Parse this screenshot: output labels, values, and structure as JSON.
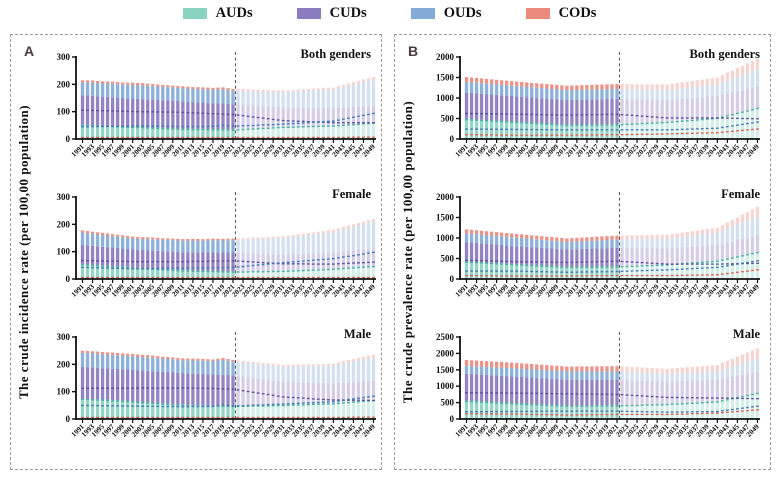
{
  "legend": {
    "items": [
      {
        "label": "AUDs",
        "color": "#8BD2C3",
        "line_color": "#3AAE9C"
      },
      {
        "label": "CUDs",
        "color": "#8A7CBE",
        "line_color": "#584A9E"
      },
      {
        "label": "OUDs",
        "color": "#84ABD7",
        "line_color": "#3E74B6"
      },
      {
        "label": "CODs",
        "color": "#EA8B7E",
        "line_color": "#E4574B"
      }
    ]
  },
  "panels": [
    {
      "letter": "A",
      "ylabel": "The crude incidence rate (per 100,00 population)"
    },
    {
      "letter": "B",
      "ylabel": "The crude prevalence rate (per 100,00 population)"
    }
  ],
  "x_axis": {
    "years_labeled": [
      1991,
      1993,
      1995,
      1997,
      1999,
      2001,
      2003,
      2005,
      2007,
      2009,
      2011,
      2013,
      2015,
      2017,
      2019,
      2021,
      2023,
      2025,
      2027,
      2029,
      2031,
      2033,
      2035,
      2037,
      2039,
      2041,
      2043,
      2045,
      2047,
      2049
    ],
    "range": [
      1991,
      2049
    ],
    "observed_through": 2021,
    "projection_from": 2022,
    "divider_after_year": 2021,
    "note": "bars drawn yearly; values listed at labeled (odd) years; years after 2021 are projections drawn lighter"
  },
  "chart_data": [
    {
      "type": "bar",
      "stacked": true,
      "panel": "A",
      "title": "Both genders",
      "ylabel": "The crude incidence rate (per 100,00 population)",
      "ylim": [
        0,
        300
      ],
      "yticks": [
        0,
        100,
        200,
        300
      ],
      "series": [
        {
          "name": "AUDs",
          "values": [
            52,
            51,
            49,
            48,
            46,
            45,
            44,
            42,
            41,
            39,
            38,
            37,
            37,
            36,
            36,
            35,
            37,
            39,
            41,
            43,
            45,
            46,
            47,
            48,
            49,
            50,
            53,
            55,
            58,
            60
          ]
        },
        {
          "name": "CUDs",
          "values": [
            108,
            107,
            106,
            105,
            104,
            103,
            102,
            102,
            101,
            101,
            100,
            98,
            97,
            95,
            94,
            92,
            88,
            83,
            79,
            74,
            70,
            68,
            67,
            65,
            64,
            62,
            62,
            62,
            62,
            62
          ]
        },
        {
          "name": "OUDs",
          "values": [
            47,
            48,
            48,
            49,
            49,
            50,
            50,
            49,
            49,
            48,
            48,
            48,
            48,
            49,
            52,
            49,
            51,
            52,
            54,
            55,
            57,
            59,
            61,
            64,
            66,
            68,
            75,
            82,
            89,
            96
          ]
        },
        {
          "name": "CODs",
          "values": [
            8,
            8,
            8,
            8,
            8,
            8,
            8,
            8,
            7,
            7,
            7,
            7,
            7,
            7,
            7,
            7,
            7,
            7,
            6,
            6,
            6,
            6,
            7,
            7,
            8,
            8,
            8,
            9,
            9,
            9
          ]
        }
      ]
    },
    {
      "type": "bar",
      "stacked": true,
      "panel": "A",
      "title": "Female",
      "ylabel": "The crude incidence rate (per 100,00 population)",
      "ylim": [
        0,
        300
      ],
      "yticks": [
        0,
        100,
        200,
        300
      ],
      "series": [
        {
          "name": "AUDs",
          "values": [
            55,
            52,
            50,
            47,
            45,
            42,
            40,
            38,
            36,
            34,
            32,
            31,
            30,
            30,
            29,
            28,
            28,
            29,
            29,
            30,
            30,
            32,
            33,
            35,
            36,
            38,
            41,
            43,
            46,
            48
          ]
        },
        {
          "name": "CUDs",
          "values": [
            70,
            69,
            68,
            68,
            67,
            66,
            66,
            66,
            66,
            66,
            66,
            67,
            67,
            68,
            68,
            69,
            67,
            65,
            62,
            60,
            58,
            58,
            58,
            57,
            57,
            57,
            59,
            61,
            62,
            64
          ]
        },
        {
          "name": "OUDs",
          "values": [
            45,
            44,
            43,
            42,
            41,
            40,
            40,
            41,
            41,
            42,
            42,
            43,
            43,
            44,
            44,
            45,
            48,
            52,
            55,
            59,
            62,
            65,
            68,
            71,
            74,
            77,
            83,
            88,
            94,
            100
          ]
        },
        {
          "name": "CODs",
          "values": [
            8,
            8,
            8,
            7,
            7,
            7,
            7,
            7,
            6,
            6,
            6,
            6,
            6,
            6,
            6,
            6,
            6,
            6,
            6,
            6,
            6,
            6,
            7,
            7,
            8,
            8,
            8,
            8,
            8,
            8
          ]
        }
      ]
    },
    {
      "type": "bar",
      "stacked": true,
      "panel": "A",
      "title": "Male",
      "ylabel": "The crude incidence rate (per 100,00 population)",
      "ylim": [
        0,
        300
      ],
      "yticks": [
        0,
        100,
        200,
        300
      ],
      "series": [
        {
          "name": "AUDs",
          "values": [
            75,
            73,
            71,
            69,
            67,
            65,
            62,
            60,
            57,
            55,
            52,
            51,
            50,
            49,
            49,
            48,
            49,
            50,
            50,
            51,
            52,
            53,
            54,
            56,
            57,
            58,
            61,
            64,
            67,
            70
          ]
        },
        {
          "name": "CUDs",
          "values": [
            115,
            115,
            115,
            115,
            115,
            115,
            116,
            115,
            116,
            115,
            116,
            115,
            115,
            114,
            113,
            112,
            106,
            100,
            95,
            89,
            83,
            81,
            79,
            76,
            74,
            72,
            72,
            71,
            71,
            70
          ]
        },
        {
          "name": "OUDs",
          "values": [
            52,
            52,
            51,
            51,
            50,
            50,
            49,
            49,
            48,
            48,
            47,
            48,
            48,
            49,
            54,
            50,
            51,
            53,
            54,
            56,
            57,
            59,
            61,
            62,
            64,
            66,
            71,
            76,
            81,
            86
          ]
        },
        {
          "name": "CODs",
          "values": [
            8,
            8,
            8,
            8,
            8,
            8,
            8,
            8,
            7,
            7,
            7,
            7,
            7,
            6,
            7,
            6,
            6,
            6,
            6,
            6,
            6,
            6,
            6,
            6,
            6,
            6,
            8,
            9,
            9,
            9
          ]
        }
      ]
    },
    {
      "type": "bar",
      "stacked": true,
      "panel": "B",
      "title": "Both genders",
      "ylabel": "The crude prevalence rate (per 100,00 population)",
      "ylim": [
        0,
        2000
      ],
      "yticks": [
        0,
        500,
        1000,
        1500,
        2000
      ],
      "series": [
        {
          "name": "AUDs",
          "values": [
            490,
            476,
            462,
            448,
            434,
            420,
            406,
            392,
            378,
            364,
            350,
            352,
            354,
            356,
            358,
            360,
            372,
            384,
            396,
            408,
            420,
            440,
            460,
            480,
            500,
            520,
            580,
            640,
            700,
            760
          ]
        },
        {
          "name": "CUDs",
          "values": [
            640,
            636,
            632,
            628,
            624,
            620,
            616,
            612,
            608,
            604,
            600,
            604,
            608,
            612,
            616,
            620,
            602,
            584,
            566,
            548,
            530,
            530,
            530,
            530,
            530,
            530,
            525,
            520,
            515,
            510
          ]
        },
        {
          "name": "OUDs",
          "values": [
            260,
            258,
            256,
            254,
            252,
            250,
            248,
            246,
            244,
            242,
            240,
            240,
            240,
            240,
            240,
            240,
            240,
            240,
            240,
            240,
            240,
            248,
            256,
            264,
            272,
            280,
            318,
            355,
            392,
            430
          ]
        },
        {
          "name": "CODs",
          "values": [
            120,
            118,
            116,
            114,
            112,
            110,
            110,
            110,
            110,
            110,
            110,
            112,
            114,
            116,
            118,
            120,
            124,
            128,
            132,
            136,
            140,
            146,
            152,
            158,
            164,
            170,
            192,
            215,
            238,
            260
          ]
        }
      ]
    },
    {
      "type": "bar",
      "stacked": true,
      "panel": "B",
      "title": "Female",
      "ylabel": "The crude prevalence rate (per 100,00 population)",
      "ylim": [
        0,
        2000
      ],
      "yticks": [
        0,
        500,
        1000,
        1500,
        2000
      ],
      "series": [
        {
          "name": "AUDs",
          "values": [
            430,
            416,
            402,
            388,
            374,
            360,
            348,
            336,
            324,
            312,
            300,
            302,
            304,
            306,
            308,
            310,
            320,
            330,
            340,
            350,
            360,
            378,
            396,
            414,
            432,
            450,
            503,
            555,
            608,
            660
          ]
        },
        {
          "name": "CUDs",
          "values": [
            470,
            464,
            458,
            452,
            446,
            440,
            436,
            432,
            428,
            424,
            420,
            426,
            432,
            438,
            444,
            450,
            436,
            422,
            408,
            394,
            380,
            380,
            380,
            380,
            380,
            380,
            385,
            390,
            395,
            400
          ]
        },
        {
          "name": "OUDs",
          "values": [
            210,
            210,
            210,
            210,
            210,
            210,
            204,
            198,
            192,
            186,
            180,
            184,
            188,
            192,
            196,
            200,
            208,
            216,
            224,
            232,
            240,
            252,
            264,
            276,
            288,
            300,
            340,
            380,
            420,
            460
          ]
        },
        {
          "name": "CODs",
          "values": [
            100,
            98,
            96,
            94,
            92,
            90,
            90,
            90,
            90,
            90,
            90,
            92,
            94,
            96,
            98,
            100,
            100,
            100,
            100,
            100,
            100,
            104,
            108,
            112,
            116,
            120,
            150,
            180,
            210,
            240
          ]
        }
      ]
    },
    {
      "type": "bar",
      "stacked": true,
      "panel": "B",
      "title": "Male",
      "ylabel": "The crude prevalence rate (per 100,00 population)",
      "ylim": [
        0,
        2500
      ],
      "yticks": [
        0,
        500,
        1000,
        1500,
        2000,
        2500
      ],
      "series": [
        {
          "name": "AUDs",
          "values": [
            560,
            544,
            528,
            512,
            496,
            480,
            466,
            452,
            438,
            424,
            410,
            412,
            414,
            416,
            418,
            420,
            428,
            436,
            444,
            452,
            460,
            476,
            492,
            508,
            524,
            540,
            605,
            670,
            735,
            800
          ]
        },
        {
          "name": "CUDs",
          "values": [
            820,
            818,
            816,
            814,
            812,
            810,
            806,
            802,
            798,
            794,
            790,
            786,
            782,
            778,
            774,
            770,
            752,
            734,
            716,
            698,
            680,
            676,
            672,
            668,
            664,
            660,
            655,
            650,
            645,
            640
          ]
        },
        {
          "name": "OUDs",
          "values": [
            240,
            242,
            244,
            246,
            248,
            250,
            252,
            254,
            256,
            258,
            260,
            260,
            260,
            260,
            260,
            260,
            254,
            248,
            242,
            236,
            230,
            234,
            238,
            242,
            246,
            250,
            290,
            330,
            370,
            410
          ]
        },
        {
          "name": "CODs",
          "values": [
            180,
            178,
            176,
            174,
            172,
            170,
            164,
            158,
            152,
            146,
            140,
            144,
            148,
            152,
            156,
            160,
            160,
            160,
            160,
            160,
            160,
            168,
            176,
            184,
            192,
            200,
            225,
            250,
            275,
            300
          ]
        }
      ]
    }
  ]
}
